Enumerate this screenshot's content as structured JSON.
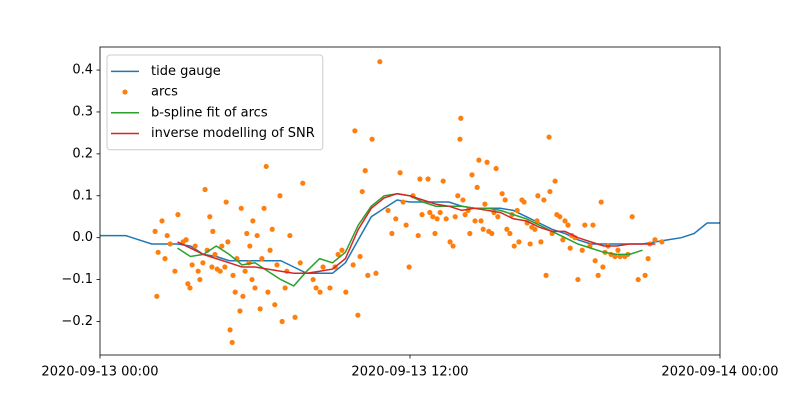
{
  "chart_data": {
    "type": "line",
    "xlim": [
      "2020-09-13 00:00",
      "2020-09-14 00:00"
    ],
    "xticks": [
      "2020-09-13 00:00",
      "2020-09-13 12:00",
      "2020-09-14 00:00"
    ],
    "ylim": [
      -0.28,
      0.455
    ],
    "yticks": [
      {
        "value": -0.2,
        "label": "−0.2"
      },
      {
        "value": -0.1,
        "label": "−0.1"
      },
      {
        "value": 0.0,
        "label": "0.0"
      },
      0.1,
      0.2,
      0.3,
      0.4
    ],
    "legend": "upper left",
    "series": [
      {
        "name": "tide gauge",
        "type": "line",
        "color": "#1f77b4",
        "x": [
          "2020-09-13 00:00",
          "2020-09-13 00:30",
          "2020-09-13 01:00",
          "2020-09-13 01:30",
          "2020-09-13 02:00",
          "2020-09-13 02:30",
          "2020-09-13 03:00",
          "2020-09-13 03:30",
          "2020-09-13 04:00",
          "2020-09-13 04:30",
          "2020-09-13 05:00",
          "2020-09-13 05:30",
          "2020-09-13 06:00",
          "2020-09-13 06:30",
          "2020-09-13 07:00",
          "2020-09-13 07:30",
          "2020-09-13 08:00",
          "2020-09-13 08:30",
          "2020-09-13 09:00",
          "2020-09-13 09:30",
          "2020-09-13 10:00",
          "2020-09-13 10:30",
          "2020-09-13 11:00",
          "2020-09-13 11:30",
          "2020-09-13 12:00",
          "2020-09-13 12:30",
          "2020-09-13 13:00",
          "2020-09-13 13:30",
          "2020-09-13 14:00",
          "2020-09-13 14:30",
          "2020-09-13 15:00",
          "2020-09-13 15:30",
          "2020-09-13 16:00",
          "2020-09-13 16:30",
          "2020-09-13 17:00",
          "2020-09-13 17:30",
          "2020-09-13 18:00",
          "2020-09-13 18:30",
          "2020-09-13 19:00",
          "2020-09-13 19:30",
          "2020-09-13 20:00",
          "2020-09-13 20:30",
          "2020-09-13 21:00",
          "2020-09-13 21:30",
          "2020-09-13 22:00",
          "2020-09-13 22:30",
          "2020-09-13 23:00",
          "2020-09-13 23:30",
          "2020-09-14 00:00"
        ],
        "values": [
          0.005,
          0.005,
          0.005,
          -0.005,
          -0.015,
          -0.015,
          -0.015,
          -0.02,
          -0.04,
          -0.045,
          -0.055,
          -0.055,
          -0.055,
          -0.055,
          -0.055,
          -0.07,
          -0.085,
          -0.085,
          -0.085,
          -0.06,
          -0.005,
          0.05,
          0.07,
          0.09,
          0.085,
          0.085,
          0.085,
          0.085,
          0.075,
          0.07,
          0.07,
          0.07,
          0.065,
          0.05,
          0.035,
          0.02,
          0.01,
          -0.005,
          -0.015,
          -0.015,
          -0.015,
          -0.015,
          -0.015,
          -0.01,
          -0.005,
          0.0,
          0.01,
          0.035,
          0.035
        ]
      },
      {
        "name": "arcs",
        "type": "scatter",
        "color": "#ff7f0e",
        "x": [
          "2020-09-13 02:08",
          "2020-09-13 02:12",
          "2020-09-13 02:15",
          "2020-09-13 02:24",
          "2020-09-13 02:31",
          "2020-09-13 02:36",
          "2020-09-13 02:43",
          "2020-09-13 02:54",
          "2020-09-13 03:01",
          "2020-09-13 03:13",
          "2020-09-13 03:20",
          "2020-09-13 03:24",
          "2020-09-13 03:29",
          "2020-09-13 03:34",
          "2020-09-13 03:41",
          "2020-09-13 03:48",
          "2020-09-13 03:52",
          "2020-09-13 03:59",
          "2020-09-13 04:04",
          "2020-09-13 04:09",
          "2020-09-13 04:15",
          "2020-09-13 04:20",
          "2020-09-13 04:22",
          "2020-09-13 04:27",
          "2020-09-13 04:32",
          "2020-09-13 04:39",
          "2020-09-13 04:43",
          "2020-09-13 04:50",
          "2020-09-13 04:53",
          "2020-09-13 04:57",
          "2020-09-13 05:02",
          "2020-09-13 05:07",
          "2020-09-13 05:09",
          "2020-09-13 05:14",
          "2020-09-13 05:18",
          "2020-09-13 05:25",
          "2020-09-13 05:28",
          "2020-09-13 05:32",
          "2020-09-13 05:37",
          "2020-09-13 05:41",
          "2020-09-13 05:46",
          "2020-09-13 05:48",
          "2020-09-13 05:53",
          "2020-09-13 05:55",
          "2020-09-13 06:00",
          "2020-09-13 06:05",
          "2020-09-13 06:12",
          "2020-09-13 06:16",
          "2020-09-13 06:21",
          "2020-09-13 06:26",
          "2020-09-13 06:30",
          "2020-09-13 06:35",
          "2020-09-13 06:40",
          "2020-09-13 06:46",
          "2020-09-13 06:51",
          "2020-09-13 06:58",
          "2020-09-13 07:03",
          "2020-09-13 07:10",
          "2020-09-13 07:14",
          "2020-09-13 07:21",
          "2020-09-13 07:33",
          "2020-09-13 07:45",
          "2020-09-13 07:51",
          "2020-09-13 08:15",
          "2020-09-13 08:22",
          "2020-09-13 08:31",
          "2020-09-13 08:38",
          "2020-09-13 08:54",
          "2020-09-13 09:06",
          "2020-09-13 09:13",
          "2020-09-13 09:22",
          "2020-09-13 09:31",
          "2020-09-13 09:48",
          "2020-09-13 09:52",
          "2020-09-13 09:59",
          "2020-09-13 10:04",
          "2020-09-13 10:09",
          "2020-09-13 10:16",
          "2020-09-13 10:22",
          "2020-09-13 10:32",
          "2020-09-13 10:41",
          "2020-09-13 10:50",
          "2020-09-13 11:09",
          "2020-09-13 11:18",
          "2020-09-13 11:27",
          "2020-09-13 11:37",
          "2020-09-13 11:44",
          "2020-09-13 11:51",
          "2020-09-13 11:58",
          "2020-09-13 12:07",
          "2020-09-13 12:19",
          "2020-09-13 12:23",
          "2020-09-13 12:28",
          "2020-09-13 12:42",
          "2020-09-13 12:46",
          "2020-09-13 12:53",
          "2020-09-13 12:58",
          "2020-09-13 13:03",
          "2020-09-13 13:10",
          "2020-09-13 13:17",
          "2020-09-13 13:24",
          "2020-09-13 13:33",
          "2020-09-13 13:40",
          "2020-09-13 13:45",
          "2020-09-13 13:51",
          "2020-09-13 13:56",
          "2020-09-13 13:58",
          "2020-09-13 14:03",
          "2020-09-13 14:08",
          "2020-09-13 14:15",
          "2020-09-13 14:19",
          "2020-09-13 14:24",
          "2020-09-13 14:31",
          "2020-09-13 14:36",
          "2020-09-13 14:40",
          "2020-09-13 14:45",
          "2020-09-13 14:50",
          "2020-09-13 14:54",
          "2020-09-13 14:59",
          "2020-09-13 15:03",
          "2020-09-13 15:10",
          "2020-09-13 15:15",
          "2020-09-13 15:20",
          "2020-09-13 15:24",
          "2020-09-13 15:34",
          "2020-09-13 15:41",
          "2020-09-13 15:45",
          "2020-09-13 15:52",
          "2020-09-13 15:57",
          "2020-09-13 16:02",
          "2020-09-13 16:09",
          "2020-09-13 16:13",
          "2020-09-13 16:20",
          "2020-09-13 16:25",
          "2020-09-13 16:32",
          "2020-09-13 16:39",
          "2020-09-13 16:43",
          "2020-09-13 16:50",
          "2020-09-13 16:55",
          "2020-09-13 16:57",
          "2020-09-13 17:04",
          "2020-09-13 17:11",
          "2020-09-13 17:16",
          "2020-09-13 17:23",
          "2020-09-13 17:25",
          "2020-09-13 17:30",
          "2020-09-13 17:37",
          "2020-09-13 17:41",
          "2020-09-13 17:48",
          "2020-09-13 17:55",
          "2020-09-13 18:00",
          "2020-09-13 18:07",
          "2020-09-13 18:12",
          "2020-09-13 18:16",
          "2020-09-13 18:23",
          "2020-09-13 18:30",
          "2020-09-13 18:40",
          "2020-09-13 18:46",
          "2020-09-13 18:58",
          "2020-09-13 19:05",
          "2020-09-13 19:10",
          "2020-09-13 19:17",
          "2020-09-13 19:24",
          "2020-09-13 19:28",
          "2020-09-13 19:33",
          "2020-09-13 19:40",
          "2020-09-13 19:47",
          "2020-09-13 19:56",
          "2020-09-13 20:03",
          "2020-09-13 20:08",
          "2020-09-13 20:19",
          "2020-09-13 20:26",
          "2020-09-13 20:36",
          "2020-09-13 20:50",
          "2020-09-13 21:06",
          "2020-09-13 21:13",
          "2020-09-13 21:17",
          "2020-09-13 21:29",
          "2020-09-13 21:45"
        ],
        "values": [
          0.015,
          -0.14,
          -0.035,
          0.04,
          -0.05,
          0.005,
          -0.015,
          -0.08,
          0.055,
          -0.01,
          -0.005,
          -0.11,
          -0.12,
          -0.065,
          -0.02,
          -0.08,
          -0.1,
          -0.06,
          0.115,
          -0.03,
          0.05,
          -0.07,
          0.015,
          -0.04,
          -0.075,
          -0.08,
          -0.02,
          -0.07,
          0.085,
          -0.01,
          -0.22,
          -0.25,
          -0.09,
          -0.13,
          -0.05,
          -0.175,
          0.07,
          -0.14,
          -0.08,
          0.01,
          -0.06,
          -0.02,
          -0.1,
          0.04,
          -0.12,
          0.005,
          -0.17,
          -0.05,
          0.07,
          0.17,
          -0.13,
          -0.03,
          0.02,
          -0.16,
          -0.065,
          0.1,
          -0.2,
          -0.12,
          -0.08,
          0.005,
          -0.19,
          -0.06,
          0.13,
          -0.1,
          -0.12,
          -0.13,
          -0.07,
          -0.12,
          -0.07,
          -0.04,
          -0.03,
          -0.13,
          -0.065,
          0.255,
          -0.185,
          -0.045,
          0.11,
          0.16,
          -0.09,
          0.235,
          -0.085,
          0.42,
          0.065,
          0.01,
          0.045,
          0.155,
          0.085,
          0.03,
          -0.07,
          0.1,
          0.005,
          0.14,
          0.055,
          0.14,
          0.06,
          0.05,
          0.01,
          0.045,
          0.06,
          0.135,
          0.045,
          -0.01,
          -0.02,
          0.05,
          0.1,
          0.235,
          0.285,
          0.09,
          0.055,
          0.065,
          0.01,
          0.15,
          0.04,
          0.12,
          0.185,
          0.04,
          0.02,
          0.08,
          0.18,
          0.015,
          0.01,
          0.06,
          0.165,
          0.05,
          0.105,
          0.09,
          0.02,
          0.01,
          0.055,
          -0.02,
          0.065,
          -0.01,
          0.09,
          0.085,
          0.035,
          -0.015,
          0.025,
          0.02,
          0.04,
          0.1,
          -0.01,
          0.09,
          -0.09,
          0.24,
          0.11,
          0.01,
          0.135,
          0.055,
          0.05,
          -0.005,
          0.04,
          0.03,
          -0.025,
          0.005,
          0.0,
          -0.1,
          -0.03,
          0.03,
          -0.02,
          0.03,
          -0.055,
          -0.09,
          0.085,
          -0.07,
          -0.035,
          -0.02,
          -0.04,
          -0.045,
          -0.03,
          -0.045,
          -0.045,
          -0.04,
          0.05,
          -0.1,
          -0.09,
          -0.05,
          -0.015,
          -0.005,
          -0.01
        ]
      },
      {
        "name": "b-spline fit of arcs",
        "type": "line",
        "color": "#2ca02c",
        "x": [
          "2020-09-13 03:00",
          "2020-09-13 03:30",
          "2020-09-13 04:00",
          "2020-09-13 04:30",
          "2020-09-13 05:00",
          "2020-09-13 05:30",
          "2020-09-13 06:00",
          "2020-09-13 06:30",
          "2020-09-13 07:00",
          "2020-09-13 07:30",
          "2020-09-13 08:00",
          "2020-09-13 08:30",
          "2020-09-13 09:00",
          "2020-09-13 09:30",
          "2020-09-13 10:00",
          "2020-09-13 10:30",
          "2020-09-13 11:00",
          "2020-09-13 11:30",
          "2020-09-13 12:00",
          "2020-09-13 12:30",
          "2020-09-13 13:00",
          "2020-09-13 13:30",
          "2020-09-13 14:00",
          "2020-09-13 14:30",
          "2020-09-13 15:00",
          "2020-09-13 15:30",
          "2020-09-13 16:00",
          "2020-09-13 16:30",
          "2020-09-13 17:00",
          "2020-09-13 17:30",
          "2020-09-13 18:00",
          "2020-09-13 18:30",
          "2020-09-13 19:00",
          "2020-09-13 19:30",
          "2020-09-13 20:00",
          "2020-09-13 20:30",
          "2020-09-13 21:00"
        ],
        "values": [
          -0.025,
          -0.045,
          -0.04,
          -0.02,
          -0.04,
          -0.065,
          -0.06,
          -0.08,
          -0.1,
          -0.115,
          -0.08,
          -0.05,
          -0.06,
          -0.035,
          0.03,
          0.075,
          0.1,
          0.105,
          0.1,
          0.085,
          0.075,
          0.075,
          0.075,
          0.07,
          0.07,
          0.065,
          0.055,
          0.045,
          0.03,
          0.015,
          0.0,
          -0.015,
          -0.025,
          -0.035,
          -0.04,
          -0.04,
          -0.03
        ]
      },
      {
        "name": "inverse modelling of SNR",
        "type": "line",
        "color": "#d62728",
        "x": [
          "2020-09-13 03:00",
          "2020-09-13 03:30",
          "2020-09-13 04:00",
          "2020-09-13 04:30",
          "2020-09-13 05:00",
          "2020-09-13 05:30",
          "2020-09-13 06:00",
          "2020-09-13 06:30",
          "2020-09-13 07:00",
          "2020-09-13 07:30",
          "2020-09-13 08:00",
          "2020-09-13 08:30",
          "2020-09-13 09:00",
          "2020-09-13 09:30",
          "2020-09-13 10:00",
          "2020-09-13 10:30",
          "2020-09-13 11:00",
          "2020-09-13 11:30",
          "2020-09-13 12:00",
          "2020-09-13 12:30",
          "2020-09-13 13:00",
          "2020-09-13 13:30",
          "2020-09-13 14:00",
          "2020-09-13 14:30",
          "2020-09-13 15:00",
          "2020-09-13 15:30",
          "2020-09-13 16:00",
          "2020-09-13 16:30",
          "2020-09-13 17:00",
          "2020-09-13 17:30",
          "2020-09-13 18:00",
          "2020-09-13 18:30",
          "2020-09-13 19:00",
          "2020-09-13 19:30",
          "2020-09-13 20:00",
          "2020-09-13 20:30",
          "2020-09-13 21:00",
          "2020-09-13 21:30"
        ],
        "values": [
          -0.01,
          -0.025,
          -0.04,
          -0.05,
          -0.06,
          -0.07,
          -0.07,
          -0.075,
          -0.08,
          -0.085,
          -0.085,
          -0.08,
          -0.075,
          -0.05,
          0.02,
          0.07,
          0.095,
          0.105,
          0.1,
          0.09,
          0.08,
          0.075,
          0.065,
          0.07,
          0.065,
          0.06,
          0.045,
          0.04,
          0.025,
          0.015,
          0.015,
          0.0,
          -0.01,
          -0.02,
          -0.02,
          -0.015,
          -0.015,
          -0.015
        ]
      }
    ]
  }
}
